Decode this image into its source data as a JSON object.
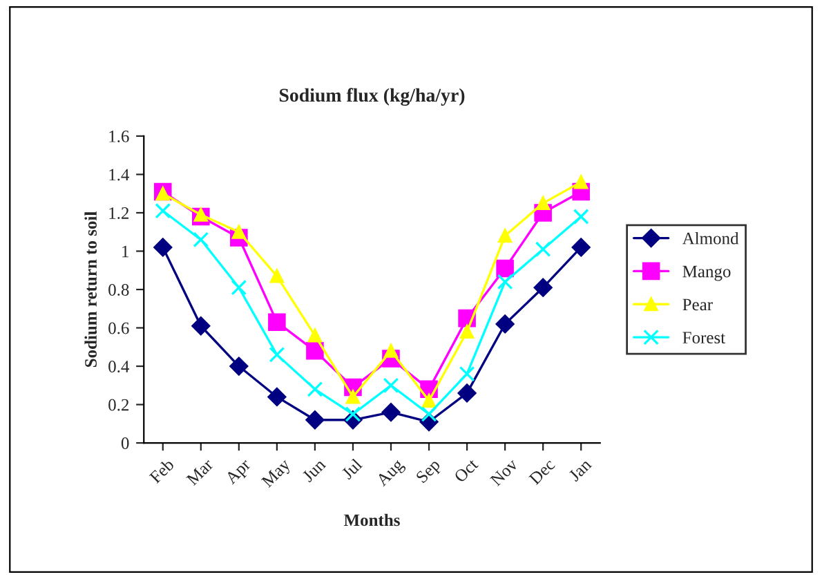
{
  "chart_data": {
    "type": "line",
    "title": "Sodium flux (kg/ha/yr)",
    "xlabel": "Months",
    "ylabel": "Sodium return to soil",
    "categories": [
      "Feb",
      "Mar",
      "Apr",
      "May",
      "Jun",
      "Jul",
      "Aug",
      "Sep",
      "Oct",
      "Nov",
      "Dec",
      "Jan"
    ],
    "series": [
      {
        "name": "Almond",
        "color": "#000080",
        "marker": "diamond",
        "values": [
          1.02,
          0.61,
          0.4,
          0.24,
          0.12,
          0.12,
          0.16,
          0.11,
          0.26,
          0.62,
          0.81,
          1.02
        ]
      },
      {
        "name": "Mango",
        "color": "#ff00ff",
        "marker": "square",
        "values": [
          1.31,
          1.18,
          1.07,
          0.63,
          0.48,
          0.29,
          0.44,
          0.28,
          0.65,
          0.91,
          1.2,
          1.31
        ]
      },
      {
        "name": "Pear",
        "color": "#ffff00",
        "marker": "triangle",
        "values": [
          1.3,
          1.19,
          1.1,
          0.87,
          0.56,
          0.24,
          0.48,
          0.22,
          0.58,
          1.08,
          1.25,
          1.36
        ]
      },
      {
        "name": "Forest",
        "color": "#00ffff",
        "marker": "cross",
        "values": [
          1.21,
          1.06,
          0.81,
          0.46,
          0.28,
          0.15,
          0.3,
          0.15,
          0.36,
          0.84,
          1.01,
          1.18
        ]
      }
    ],
    "ylim": [
      0,
      1.6
    ],
    "yticks": [
      {
        "value": 0,
        "label": "0"
      },
      0.2,
      0.4,
      0.6,
      0.8,
      {
        "value": 1,
        "label": "1"
      },
      1.2,
      1.4,
      1.6
    ],
    "grid": false,
    "legend": "right",
    "line_style": "solid"
  }
}
